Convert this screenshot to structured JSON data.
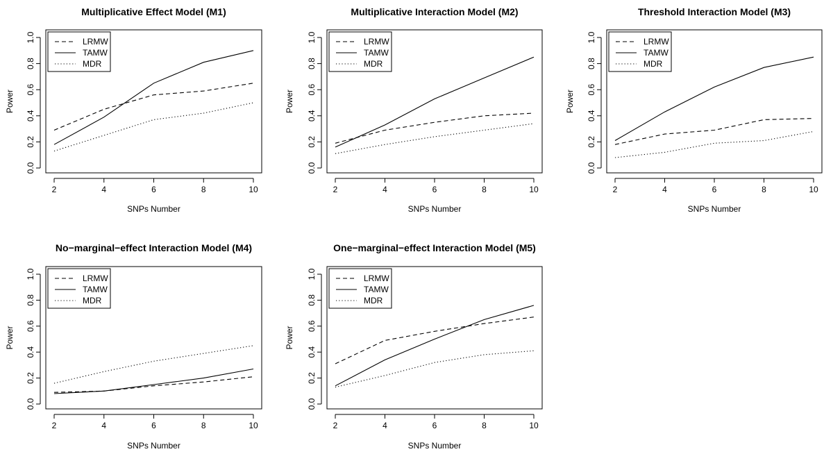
{
  "chart_data": [
    {
      "type": "line",
      "title": "Multiplicative Effect Model (M1)",
      "xlabel": "SNPs Number",
      "ylabel": "Power",
      "x": [
        2,
        4,
        6,
        8,
        10
      ],
      "xticks": [
        "2",
        "4",
        "6",
        "8",
        "10"
      ],
      "yticks": [
        "0.0",
        "0.2",
        "0.4",
        "0.6",
        "0.8",
        "1.0"
      ],
      "xlim": [
        2,
        10
      ],
      "ylim": [
        0,
        1
      ],
      "legend_position": "top-left",
      "series": [
        {
          "name": "LRMW",
          "style": "dashed",
          "values": [
            0.29,
            0.45,
            0.56,
            0.59,
            0.65
          ]
        },
        {
          "name": "TAMW",
          "style": "solid",
          "values": [
            0.18,
            0.39,
            0.65,
            0.81,
            0.9
          ]
        },
        {
          "name": "MDR",
          "style": "dotted",
          "values": [
            0.13,
            0.25,
            0.37,
            0.42,
            0.5
          ]
        }
      ]
    },
    {
      "type": "line",
      "title": "Multiplicative Interaction Model (M2)",
      "xlabel": "SNPs Number",
      "ylabel": "Power",
      "x": [
        2,
        4,
        6,
        8,
        10
      ],
      "xticks": [
        "2",
        "4",
        "6",
        "8",
        "10"
      ],
      "yticks": [
        "0.0",
        "0.2",
        "0.4",
        "0.6",
        "0.8",
        "1.0"
      ],
      "xlim": [
        2,
        10
      ],
      "ylim": [
        0,
        1
      ],
      "legend_position": "top-left",
      "series": [
        {
          "name": "LRMW",
          "style": "dashed",
          "values": [
            0.19,
            0.29,
            0.35,
            0.4,
            0.42
          ]
        },
        {
          "name": "TAMW",
          "style": "solid",
          "values": [
            0.16,
            0.33,
            0.53,
            0.69,
            0.85
          ]
        },
        {
          "name": "MDR",
          "style": "dotted",
          "values": [
            0.11,
            0.18,
            0.24,
            0.29,
            0.34
          ]
        }
      ]
    },
    {
      "type": "line",
      "title": "Threshold Interaction Model (M3)",
      "xlabel": "SNPs Number",
      "ylabel": "Power",
      "x": [
        2,
        4,
        6,
        8,
        10
      ],
      "xticks": [
        "2",
        "4",
        "6",
        "8",
        "10"
      ],
      "yticks": [
        "0.0",
        "0.2",
        "0.4",
        "0.6",
        "0.8",
        "1.0"
      ],
      "xlim": [
        2,
        10
      ],
      "ylim": [
        0,
        1
      ],
      "legend_position": "top-left",
      "series": [
        {
          "name": "LRMW",
          "style": "dashed",
          "values": [
            0.18,
            0.26,
            0.29,
            0.37,
            0.38
          ]
        },
        {
          "name": "TAMW",
          "style": "solid",
          "values": [
            0.21,
            0.43,
            0.62,
            0.77,
            0.85
          ]
        },
        {
          "name": "MDR",
          "style": "dotted",
          "values": [
            0.08,
            0.12,
            0.19,
            0.21,
            0.28
          ]
        }
      ]
    },
    {
      "type": "line",
      "title": "No−marginal−effect Interaction Model (M4)",
      "xlabel": "SNPs Number",
      "ylabel": "Power",
      "x": [
        2,
        4,
        6,
        8,
        10
      ],
      "xticks": [
        "2",
        "4",
        "6",
        "8",
        "10"
      ],
      "yticks": [
        "0.0",
        "0.2",
        "0.4",
        "0.6",
        "0.8",
        "1.0"
      ],
      "xlim": [
        2,
        10
      ],
      "ylim": [
        0,
        1
      ],
      "legend_position": "top-left",
      "series": [
        {
          "name": "LRMW",
          "style": "dashed",
          "values": [
            0.09,
            0.1,
            0.14,
            0.17,
            0.21
          ]
        },
        {
          "name": "TAMW",
          "style": "solid",
          "values": [
            0.08,
            0.1,
            0.15,
            0.2,
            0.27
          ]
        },
        {
          "name": "MDR",
          "style": "dotted",
          "values": [
            0.16,
            0.25,
            0.33,
            0.39,
            0.45
          ]
        }
      ]
    },
    {
      "type": "line",
      "title": "One−marginal−effect Interaction Model (M5)",
      "xlabel": "SNPs Number",
      "ylabel": "Power",
      "x": [
        2,
        4,
        6,
        8,
        10
      ],
      "xticks": [
        "2",
        "4",
        "6",
        "8",
        "10"
      ],
      "yticks": [
        "0.0",
        "0.2",
        "0.4",
        "0.6",
        "0.8",
        "1.0"
      ],
      "xlim": [
        2,
        10
      ],
      "ylim": [
        0,
        1
      ],
      "legend_position": "top-left",
      "series": [
        {
          "name": "LRMW",
          "style": "dashed",
          "values": [
            0.31,
            0.49,
            0.56,
            0.62,
            0.67
          ]
        },
        {
          "name": "TAMW",
          "style": "solid",
          "values": [
            0.14,
            0.34,
            0.5,
            0.65,
            0.76
          ]
        },
        {
          "name": "MDR",
          "style": "dotted",
          "values": [
            0.13,
            0.22,
            0.32,
            0.38,
            0.41
          ]
        }
      ]
    }
  ]
}
